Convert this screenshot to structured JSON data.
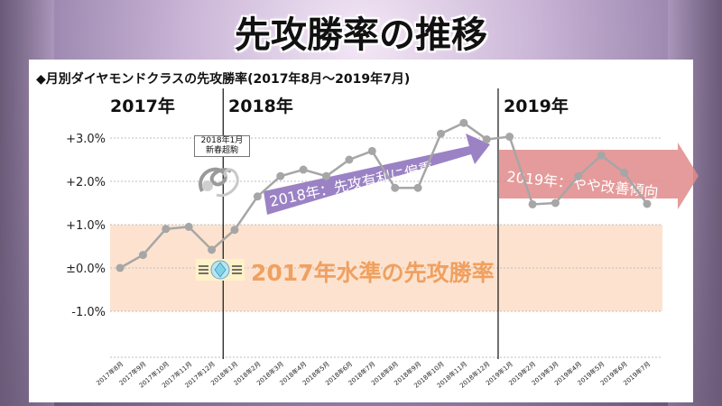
{
  "title": "先攻勝率の推移",
  "subtitle": "◆月別ダイヤモンドクラスの先攻勝率(2017年8月～2019年7月)",
  "years": [
    "2017年",
    "2018年",
    "2019年"
  ],
  "callout": {
    "line1": "2018年1月",
    "line2": "新春超駒"
  },
  "band_label": "2017年水準の先攻勝率",
  "arrows": {
    "a2018": "2018年：先攻有利に偏重…",
    "a2019": "2019年：やや改善傾向"
  },
  "colors": {
    "line": "#a6a6a6",
    "band": "#fde3cf",
    "arrow2018": "#9b82c4",
    "arrow2019": "#e08a8a",
    "band_text": "#f0a060"
  },
  "chart_data": {
    "type": "line",
    "title": "先攻勝率の推移",
    "subtitle": "月別ダイヤモンドクラスの先攻勝率(2017年8月～2019年7月)",
    "y_tick_labels": [
      "+3.0%",
      "+2.0%",
      "+1.0%",
      "±0.0%",
      "-1.0%"
    ],
    "ylim": [
      -2.0,
      3.3
    ],
    "grid": true,
    "categories": [
      "2017年8月",
      "2017年9月",
      "2017年10月",
      "2017年11月",
      "2017年12月",
      "2018年1月",
      "2018年2月",
      "2018年3月",
      "2018年4月",
      "2018年5月",
      "2018年6月",
      "2018年7月",
      "2018年8月",
      "2018年9月",
      "2018年10月",
      "2018年11月",
      "2018年12月",
      "2019年1月",
      "2019年2月",
      "2019年3月",
      "2019年4月",
      "2019年5月",
      "2019年6月",
      "2019年7月"
    ],
    "values": [
      0.0,
      0.3,
      0.9,
      0.95,
      0.42,
      0.88,
      1.65,
      2.12,
      2.27,
      2.12,
      2.5,
      2.7,
      1.85,
      1.85,
      3.1,
      3.35,
      2.97,
      3.03,
      1.47,
      1.5,
      2.12,
      2.6,
      2.2,
      1.48
    ],
    "highlight_band": [
      -1.0,
      1.0
    ],
    "dividers_after": [
      "2017年12月",
      "2018年12月"
    ]
  }
}
